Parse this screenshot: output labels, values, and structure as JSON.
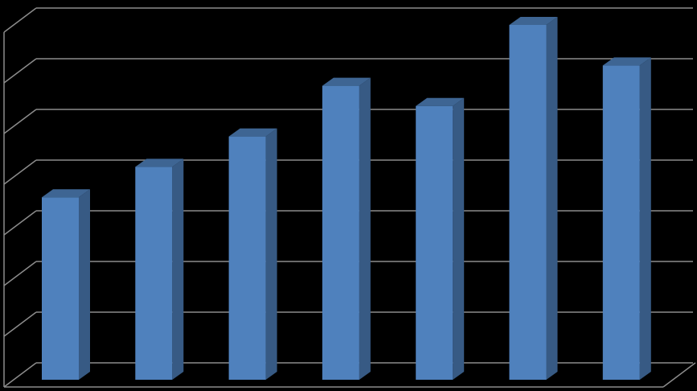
{
  "chart_data": {
    "type": "bar",
    "categories": [
      null,
      null,
      null,
      null,
      null,
      null,
      null
    ],
    "values": [
      3.6,
      4.2,
      4.8,
      5.8,
      5.4,
      7.0,
      6.2
    ],
    "color": "#4f81bd",
    "ylim": [
      0,
      7
    ],
    "yticks": [
      0,
      1,
      2,
      3,
      4,
      5,
      6,
      7
    ],
    "grid": true
  }
}
